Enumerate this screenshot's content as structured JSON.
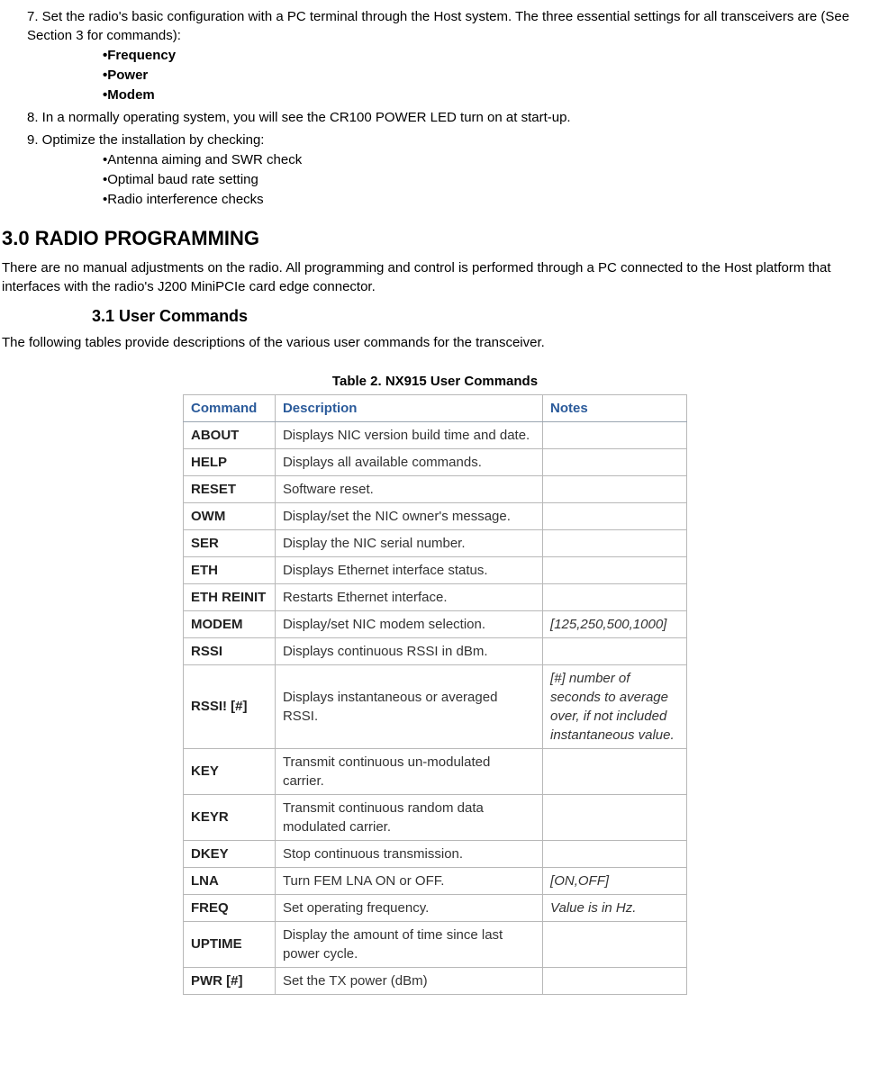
{
  "step7": {
    "text": "7. Set the radio's basic configuration with a PC terminal through the Host system. The three essential settings for all transceivers are (See Section 3 for commands):",
    "bullets": [
      "•Frequency",
      "•Power",
      "•Modem"
    ]
  },
  "step8": {
    "text": "8. In a normally operating system, you will see the CR100 POWER LED turn on at start-up."
  },
  "step9": {
    "text": "9. Optimize the installation by checking:",
    "bullets": [
      "•Antenna aiming and SWR check",
      "•Optimal baud rate setting",
      "•Radio interference checks"
    ]
  },
  "section3": {
    "heading": "3.0 RADIO PROGRAMMING",
    "para": "There are no manual adjustments on the radio. All programming and control is performed through a PC connected to the Host platform that interfaces with the radio's J200 MiniPCIe card edge connector."
  },
  "section31": {
    "heading": "3.1 User Commands",
    "para": "The following tables provide descriptions of the various user commands for the transceiver."
  },
  "table": {
    "caption": "Table 2. NX915 User Commands",
    "headers": [
      "Command",
      "Description",
      "Notes"
    ],
    "rows": [
      {
        "cmd": "ABOUT",
        "desc": "Displays NIC version build time and date.",
        "notes": ""
      },
      {
        "cmd": "HELP",
        "desc": "Displays all available commands.",
        "notes": ""
      },
      {
        "cmd": "RESET",
        "desc": "Software reset.",
        "notes": ""
      },
      {
        "cmd": "OWM",
        "desc": "Display/set the NIC owner's message.",
        "notes": ""
      },
      {
        "cmd": "SER",
        "desc": "Display the NIC serial number.",
        "notes": ""
      },
      {
        "cmd": "ETH",
        "desc": "Displays Ethernet interface status.",
        "notes": ""
      },
      {
        "cmd": "ETH REINIT",
        "desc": "Restarts Ethernet interface.",
        "notes": ""
      },
      {
        "cmd": "MODEM",
        "desc": "Display/set NIC modem selection.",
        "notes": "[125,250,500,1000]"
      },
      {
        "cmd": "RSSI",
        "desc": "Displays continuous RSSI in dBm.",
        "notes": ""
      },
      {
        "cmd": "RSSI! [#]",
        "desc": "Displays instantaneous or averaged RSSI.",
        "notes": "[#] number of seconds to average over, if not included instantaneous value."
      },
      {
        "cmd": "KEY",
        "desc": "Transmit continuous un-modulated carrier.",
        "notes": ""
      },
      {
        "cmd": "KEYR",
        "desc": "Transmit continuous random data modulated carrier.",
        "notes": ""
      },
      {
        "cmd": "DKEY",
        "desc": "Stop continuous transmission.",
        "notes": ""
      },
      {
        "cmd": "LNA",
        "desc": "Turn FEM LNA ON or OFF.",
        "notes": "[ON,OFF]"
      },
      {
        "cmd": "FREQ",
        "desc": "Set operating frequency.",
        "notes": "Value is in Hz."
      },
      {
        "cmd": "UPTIME",
        "desc": "Display the amount of time since last power cycle.",
        "notes": ""
      },
      {
        "cmd": "PWR [#]",
        "desc": "Set the TX power (dBm)",
        "notes": ""
      }
    ],
    "header_color": "#2a5a9a",
    "border_color": "#b8b8b8",
    "font_family": "Segoe UI"
  }
}
